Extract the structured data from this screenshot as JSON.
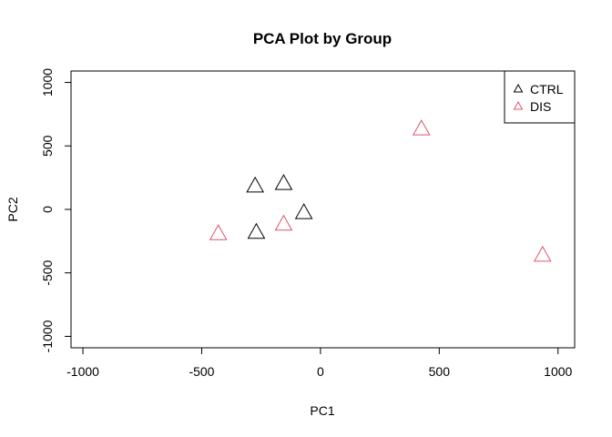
{
  "chart_data": {
    "type": "scatter",
    "title": "PCA Plot by Group",
    "xlabel": "PC1",
    "ylabel": "PC2",
    "xlim": [
      -1050,
      1070
    ],
    "ylim": [
      -1090,
      1090
    ],
    "x_ticks": [
      -1000,
      -500,
      0,
      500,
      1000
    ],
    "y_ticks": [
      -1000,
      -500,
      0,
      500,
      1000
    ],
    "x_tick_labels": [
      "-1000",
      "-500",
      "0",
      "500",
      "1000"
    ],
    "y_tick_labels": [
      "-1000",
      "-500",
      "0",
      "500",
      "1000"
    ],
    "grid": false,
    "legend_position": "top-right",
    "marker": "open-triangle",
    "series": [
      {
        "name": "CTRL",
        "color": "#000000",
        "points": [
          {
            "x": -275,
            "y": 180
          },
          {
            "x": -155,
            "y": 200
          },
          {
            "x": -270,
            "y": -185
          },
          {
            "x": -70,
            "y": -30
          }
        ]
      },
      {
        "name": "DIS",
        "color": "#DF536B",
        "points": [
          {
            "x": 425,
            "y": 630
          },
          {
            "x": 935,
            "y": -365
          },
          {
            "x": -430,
            "y": -195
          },
          {
            "x": -155,
            "y": -120
          }
        ]
      }
    ]
  }
}
